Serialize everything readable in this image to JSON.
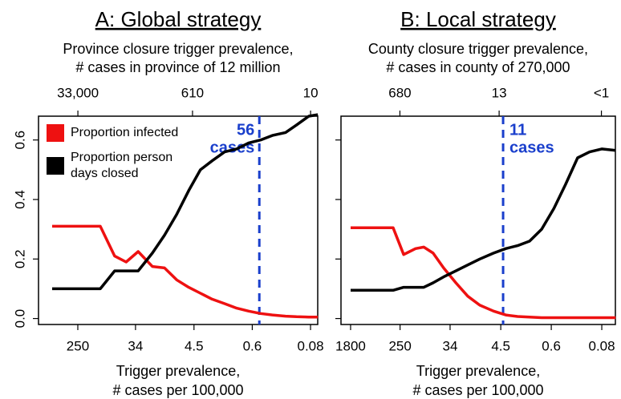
{
  "chart_data": [
    {
      "type": "line",
      "title": "A: Global strategy",
      "x2label": [
        "Province closure trigger prevalence,",
        "# cases in province of 12 million"
      ],
      "xlabel": [
        "Trigger prevalence,",
        "# cases per 100,000"
      ],
      "xscale": "log",
      "xlim": [
        973,
        0.0624
      ],
      "xticks": [
        250,
        34,
        4.5,
        0.6,
        0.08
      ],
      "x2lim": [
        130000,
        7.8
      ],
      "x2ticks": [
        {
          "value": 33000,
          "label": "33,000"
        },
        610,
        10
      ],
      "ylim": [
        -0.02,
        0.68
      ],
      "yticks": [
        {
          "value": 0,
          "label": "0.0"
        },
        0.2,
        0.4,
        0.6
      ],
      "legend": "upper left",
      "x": [
        607,
        348,
        200,
        115,
        70,
        47,
        31,
        19,
        12.5,
        8.2,
        5.4,
        3.6,
        2.4,
        1.56,
        1.03,
        0.68,
        0.45,
        0.3,
        0.19,
        0.13,
        0.085,
        0.062
      ],
      "series": [
        {
          "name": "Proportion infected",
          "color": "#ee1111",
          "values": [
            0.31,
            0.31,
            0.31,
            0.31,
            0.21,
            0.19,
            0.225,
            0.175,
            0.17,
            0.13,
            0.105,
            0.085,
            0.065,
            0.05,
            0.035,
            0.025,
            0.017,
            0.012,
            0.008,
            0.006,
            0.005,
            0.005
          ]
        },
        {
          "name": "Proportion person days closed",
          "color": "#000000",
          "values": [
            0.1,
            0.1,
            0.1,
            0.1,
            0.16,
            0.16,
            0.16,
            0.22,
            0.28,
            0.35,
            0.43,
            0.5,
            0.53,
            0.56,
            0.57,
            0.59,
            0.6,
            0.615,
            0.625,
            0.65,
            0.68,
            0.685
          ]
        }
      ],
      "threshold": {
        "x": 0.47,
        "color": "#1a3fcc",
        "label": [
          "56",
          "cases"
        ]
      }
    },
    {
      "type": "line",
      "title": "B: Local strategy",
      "x2label": [
        "County closure trigger prevalence,",
        "# cases in county of 270,000"
      ],
      "xlabel": [
        "Trigger prevalence,",
        "# cases per 100,000"
      ],
      "xscale": "log",
      "xlim": [
        2640,
        0.0465
      ],
      "xticks": [
        1800,
        250,
        34,
        4.5,
        0.6,
        0.08
      ],
      "x2lim": [
        7130,
        0.126
      ],
      "x2ticks": [
        680,
        13,
        {
          "value": 0.22,
          "label": "<1"
        }
      ],
      "ylim": [
        -0.02,
        0.68
      ],
      "yticks": [
        0,
        0.2,
        0.4,
        0.6
      ],
      "x": [
        1800,
        330,
        217,
        135,
        97,
        67,
        44,
        27,
        16.8,
        10.4,
        6.0,
        3.7,
        2.3,
        1.43,
        0.88,
        0.54,
        0.34,
        0.21,
        0.13,
        0.08,
        0.046
      ],
      "series": [
        {
          "color": "#ee1111",
          "values": [
            0.305,
            0.305,
            0.215,
            0.235,
            0.24,
            0.22,
            0.17,
            0.12,
            0.075,
            0.045,
            0.025,
            0.012,
            0.007,
            0.005,
            0.003,
            0.003,
            0.003,
            0.003,
            0.003,
            0.003,
            0.003
          ]
        },
        {
          "color": "#000000",
          "values": [
            0.095,
            0.095,
            0.105,
            0.105,
            0.105,
            0.12,
            0.14,
            0.16,
            0.18,
            0.2,
            0.22,
            0.235,
            0.245,
            0.26,
            0.3,
            0.37,
            0.45,
            0.54,
            0.56,
            0.57,
            0.565
          ]
        }
      ],
      "threshold": {
        "x": 4.1,
        "color": "#1a3fcc",
        "label": [
          "11",
          "cases"
        ]
      }
    }
  ]
}
